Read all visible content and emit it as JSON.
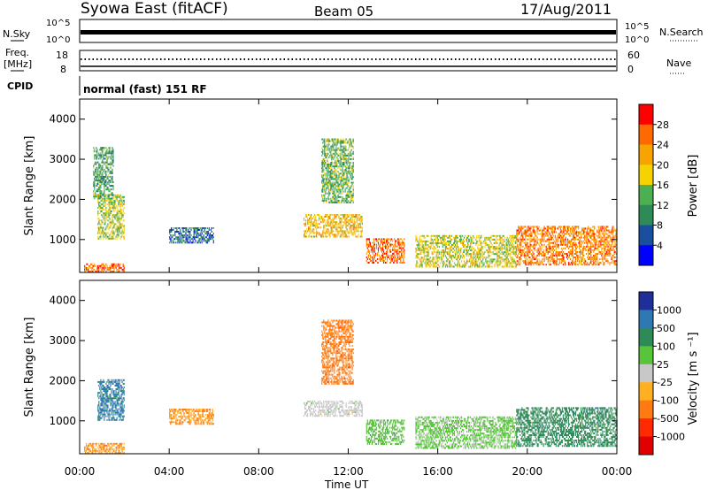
{
  "header": {
    "title": "Syowa East (fitACF)",
    "beam": "Beam 05",
    "date": "17/Aug/2011"
  },
  "params_panel": {
    "nsky_label": "N.Sky",
    "nsearch_label": "N.Search",
    "noise_ticks_left": [
      "10^5",
      "10^0"
    ],
    "noise_ticks_right": [
      "10^5",
      "10^0"
    ],
    "freq_label_line1": "Freq.",
    "freq_label_line2": "[MHz]",
    "freq_ticks": [
      "18",
      "8"
    ],
    "nave_label": "Nave",
    "nave_ticks": [
      "60",
      "0"
    ],
    "cpid_label": "CPID",
    "cpid_text": "normal (fast) 151 RF"
  },
  "time_axis": {
    "label": "Time UT",
    "ticks": [
      "00:00",
      "04:00",
      "08:00",
      "12:00",
      "16:00",
      "20:00",
      "00:00"
    ]
  },
  "chart_data": [
    {
      "type": "heatmap",
      "quantity": "Power",
      "xlabel": "Time UT",
      "ylabel": "Slant Range [km]",
      "xlim": [
        0,
        24
      ],
      "ylim": [
        180,
        4500
      ],
      "yticks": [
        1000,
        2000,
        3000,
        4000
      ],
      "colorbar": {
        "label": "Power [dB]",
        "ticks": [
          "28",
          "24",
          "20",
          "16",
          "12",
          "8",
          "4"
        ],
        "colors": [
          "#ff0000",
          "#ff6a00",
          "#f7a400",
          "#f5d200",
          "#4caf50",
          "#2e8b57",
          "#1a4fa0",
          "#0000ff"
        ]
      },
      "regions": [
        {
          "t0": 0.2,
          "t1": 2.0,
          "r0": 180,
          "r1": 400,
          "level": 0.85
        },
        {
          "t0": 0.8,
          "t1": 2.0,
          "r0": 1000,
          "r1": 2100,
          "level": 0.5
        },
        {
          "t0": 0.6,
          "t1": 1.5,
          "r0": 2000,
          "r1": 3300,
          "level": 0.35
        },
        {
          "t0": 4.0,
          "t1": 6.0,
          "r0": 900,
          "r1": 1300,
          "level": 0.2
        },
        {
          "t0": 10.0,
          "t1": 12.6,
          "r0": 1050,
          "r1": 1600,
          "level": 0.65
        },
        {
          "t0": 10.8,
          "t1": 12.2,
          "r0": 1900,
          "r1": 3500,
          "level": 0.4
        },
        {
          "t0": 12.8,
          "t1": 14.5,
          "r0": 400,
          "r1": 1000,
          "level": 0.85
        },
        {
          "t0": 15.0,
          "t1": 19.5,
          "r0": 300,
          "r1": 1100,
          "level": 0.55
        },
        {
          "t0": 19.5,
          "t1": 24.0,
          "r0": 350,
          "r1": 1300,
          "level": 0.8
        }
      ]
    },
    {
      "type": "heatmap",
      "quantity": "Velocity",
      "xlabel": "Time UT",
      "ylabel": "Slant Range [km]",
      "xlim": [
        0,
        24
      ],
      "ylim": [
        180,
        4500
      ],
      "yticks": [
        1000,
        2000,
        3000,
        4000
      ],
      "colorbar": {
        "label": "Velocity [m s^-1]",
        "ticks": [
          "1000",
          "500",
          "100",
          "25",
          "-25",
          "-100",
          "-500",
          "-1000"
        ],
        "colors": [
          "#1f2f9a",
          "#2e78b4",
          "#2e8b57",
          "#57c43a",
          "#c8c8c8",
          "#ffb020",
          "#ff7a10",
          "#ff2a00",
          "#e00000"
        ]
      },
      "regions": [
        {
          "t0": 0.2,
          "t1": 2.0,
          "r0": 180,
          "r1": 450,
          "level": 5.5
        },
        {
          "t0": 0.8,
          "t1": 2.0,
          "r0": 1000,
          "r1": 2000,
          "level": 1.2
        },
        {
          "t0": 4.0,
          "t1": 6.0,
          "r0": 900,
          "r1": 1300,
          "level": 5.5
        },
        {
          "t0": 10.0,
          "t1": 12.6,
          "r0": 1100,
          "r1": 1500,
          "level": 4.0
        },
        {
          "t0": 10.8,
          "t1": 12.2,
          "r0": 1900,
          "r1": 3500,
          "level": 6.0
        },
        {
          "t0": 12.8,
          "t1": 14.5,
          "r0": 400,
          "r1": 1000,
          "level": 3.0
        },
        {
          "t0": 15.0,
          "t1": 19.5,
          "r0": 300,
          "r1": 1100,
          "level": 3.2
        },
        {
          "t0": 19.5,
          "t1": 24.0,
          "r0": 350,
          "r1": 1300,
          "level": 2.0
        }
      ]
    }
  ]
}
